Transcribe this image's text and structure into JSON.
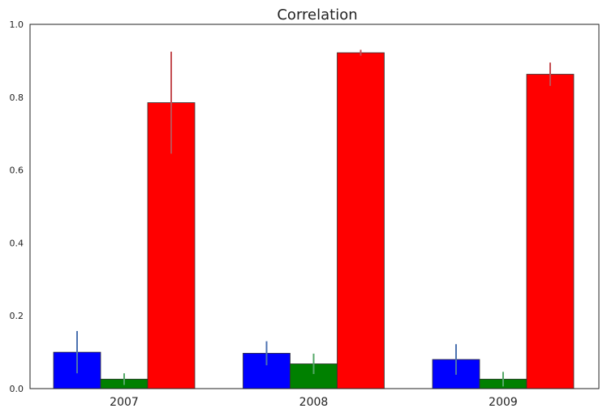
{
  "chart_data": {
    "type": "bar",
    "title": "Correlation",
    "xlabel": "",
    "ylabel": "",
    "categories": [
      "2007",
      "2008",
      "2009"
    ],
    "ylim": [
      0,
      1
    ],
    "yticks": [
      "0.0",
      "0.2",
      "0.4",
      "0.6",
      "0.8",
      "1.0"
    ],
    "grid": false,
    "series": [
      {
        "color": "#0000ff",
        "error_color": "#4c72b0",
        "values": [
          0.1,
          0.097,
          0.08
        ],
        "errors": [
          0.058,
          0.033,
          0.042
        ]
      },
      {
        "color": "#008000",
        "error_color": "#55a868",
        "values": [
          0.026,
          0.068,
          0.026
        ],
        "errors": [
          0.016,
          0.028,
          0.02
        ]
      },
      {
        "color": "#ff0000",
        "error_color": "#c44e52",
        "values": [
          0.785,
          0.922,
          0.863
        ],
        "errors": [
          0.14,
          0.008,
          0.032
        ]
      }
    ]
  }
}
